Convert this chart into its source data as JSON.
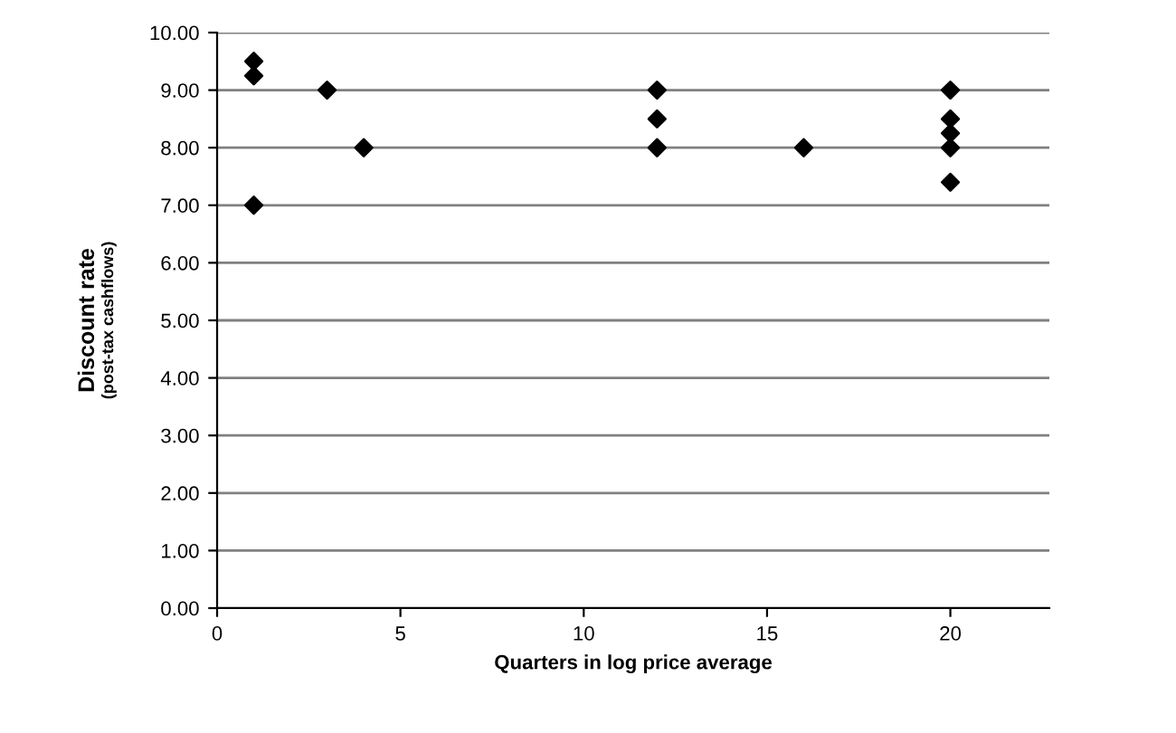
{
  "chart_data": {
    "type": "scatter",
    "xlabel": "Quarters in log price average",
    "ylabel": "Discount rate",
    "y2label": "(post-tax cashflows)",
    "series": [
      {
        "color": "#000000",
        "x": [
          1,
          1,
          1,
          3,
          4,
          12,
          12,
          12,
          16,
          20,
          20,
          20,
          20,
          20
        ],
        "values": [
          9.5,
          9.25,
          7.0,
          9.0,
          8.0,
          9.0,
          8.5,
          8.0,
          8.0,
          9.0,
          8.5,
          8.25,
          8.0,
          7.4
        ]
      }
    ],
    "xlim": [
      0,
      22.7
    ],
    "xticks": [
      0,
      5,
      10,
      15,
      20
    ],
    "ylim": [
      0,
      10
    ],
    "yticks": [
      {
        "value": 0,
        "label": "0.00"
      },
      {
        "value": 1,
        "label": "1.00"
      },
      {
        "value": 2,
        "label": "2.00"
      },
      {
        "value": 3,
        "label": "3.00"
      },
      {
        "value": 4,
        "label": "4.00"
      },
      {
        "value": 5,
        "label": "5.00"
      },
      {
        "value": 6,
        "label": "6.00"
      },
      {
        "value": 7,
        "label": "7.00"
      },
      {
        "value": 8,
        "label": "8.00"
      },
      {
        "value": 9,
        "label": "9.00"
      },
      {
        "value": 10,
        "label": "10.00"
      }
    ],
    "grid": "y",
    "marker": "diamond"
  }
}
